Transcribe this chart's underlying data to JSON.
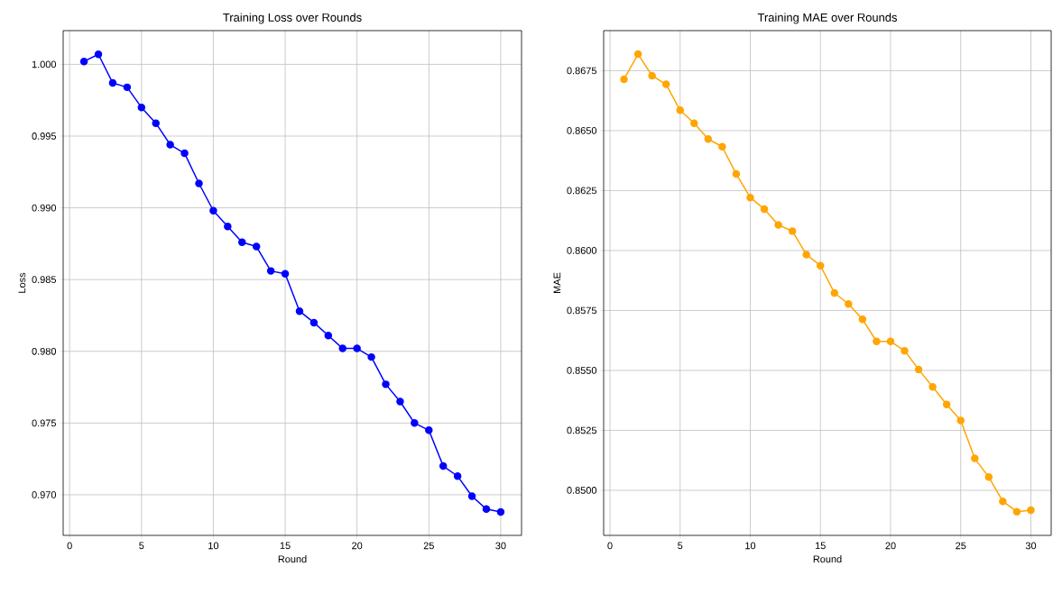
{
  "chart_data": [
    {
      "type": "line",
      "title": "Training Loss over Rounds",
      "xlabel": "Round",
      "ylabel": "Loss",
      "x": [
        1,
        2,
        3,
        4,
        5,
        6,
        7,
        8,
        9,
        10,
        11,
        12,
        13,
        14,
        15,
        16,
        17,
        18,
        19,
        20,
        21,
        22,
        23,
        24,
        25,
        26,
        27,
        28,
        29,
        30
      ],
      "series": [
        {
          "color": "#0000ff",
          "values": [
            1.0002,
            1.0007,
            0.9987,
            0.9984,
            0.997,
            0.9959,
            0.9944,
            0.9938,
            0.9917,
            0.9898,
            0.9887,
            0.9876,
            0.9873,
            0.9856,
            0.9854,
            0.9828,
            0.982,
            0.9811,
            0.9802,
            0.9802,
            0.9796,
            0.9777,
            0.9765,
            0.975,
            0.9745,
            0.972,
            0.9713,
            0.9699,
            0.969,
            0.9688
          ]
        }
      ],
      "xlim": [
        -0.45,
        31.45
      ],
      "ylim": [
        0.96717,
        1.00235
      ],
      "xticks": [
        0,
        5,
        10,
        15,
        20,
        25,
        30
      ],
      "yticks": [
        {
          "value": 0.97,
          "label": "0.970"
        },
        0.975,
        {
          "value": 0.98,
          "label": "0.980"
        },
        0.985,
        {
          "value": 0.99,
          "label": "0.990"
        },
        0.995,
        {
          "value": 1,
          "label": "1.000"
        }
      ],
      "grid": true,
      "marker": "circle",
      "line_style": "solid"
    },
    {
      "type": "line",
      "title": "Training MAE over Rounds",
      "xlabel": "Round",
      "ylabel": "MAE",
      "x": [
        1,
        2,
        3,
        4,
        5,
        6,
        7,
        8,
        9,
        10,
        11,
        12,
        13,
        14,
        15,
        16,
        17,
        18,
        19,
        20,
        21,
        22,
        23,
        24,
        25,
        26,
        27,
        28,
        29,
        30
      ],
      "series": [
        {
          "color": "#ffa500",
          "values": [
            0.86714,
            0.86819,
            0.86729,
            0.86693,
            0.86585,
            0.86531,
            0.86465,
            0.86433,
            0.86319,
            0.86221,
            0.86173,
            0.86107,
            0.86081,
            0.85983,
            0.85937,
            0.85823,
            0.85777,
            0.85713,
            0.85621,
            0.85621,
            0.85582,
            0.85504,
            0.85431,
            0.85358,
            0.85291,
            0.85133,
            0.85055,
            0.84954,
            0.84911,
            0.84917
          ]
        }
      ],
      "xlim": [
        -0.45,
        31.45
      ],
      "ylim": [
        0.84812,
        0.86917
      ],
      "xticks": [
        0,
        5,
        10,
        15,
        20,
        25,
        30
      ],
      "yticks": [
        {
          "value": 0.85,
          "label": "0.8500"
        },
        0.8525,
        {
          "value": 0.855,
          "label": "0.8550"
        },
        0.8575,
        {
          "value": 0.86,
          "label": "0.8600"
        },
        0.8625,
        {
          "value": 0.865,
          "label": "0.8650"
        },
        0.8675
      ],
      "grid": true,
      "marker": "circle",
      "line_style": "solid"
    }
  ]
}
